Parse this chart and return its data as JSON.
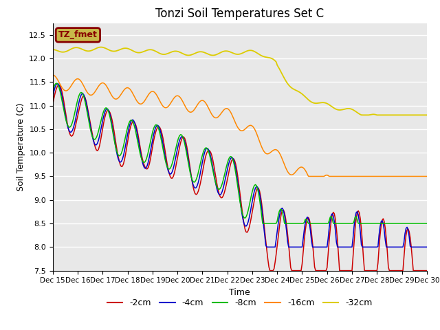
{
  "title": "Tonzi Soil Temperatures Set C",
  "xlabel": "Time",
  "ylabel": "Soil Temperature (C)",
  "ylim": [
    7.5,
    12.75
  ],
  "xlim": [
    0,
    360
  ],
  "bg_color": "#e8e8e8",
  "annotation_text": "TZ_fmet",
  "annotation_bg": "#c8b84a",
  "annotation_border": "#880000",
  "series": {
    "neg2cm": {
      "label": "-2cm",
      "color": "#cc0000"
    },
    "neg4cm": {
      "label": "-4cm",
      "color": "#0000cc"
    },
    "neg8cm": {
      "label": "-8cm",
      "color": "#00bb00"
    },
    "neg16cm": {
      "label": "-16cm",
      "color": "#ff8800"
    },
    "neg32cm": {
      "label": "-32cm",
      "color": "#ddcc00"
    }
  },
  "xtick_labels": [
    "Dec 15",
    "Dec 16",
    "Dec 17",
    "Dec 18",
    "Dec 19",
    "Dec 20",
    "Dec 21",
    "Dec 22",
    "Dec 23",
    "Dec 24",
    "Dec 25",
    "Dec 26",
    "Dec 27",
    "Dec 28",
    "Dec 29",
    "Dec 30"
  ],
  "xtick_positions": [
    0,
    24,
    48,
    72,
    96,
    120,
    144,
    168,
    192,
    216,
    240,
    264,
    288,
    312,
    336,
    360
  ],
  "title_fontsize": 12
}
